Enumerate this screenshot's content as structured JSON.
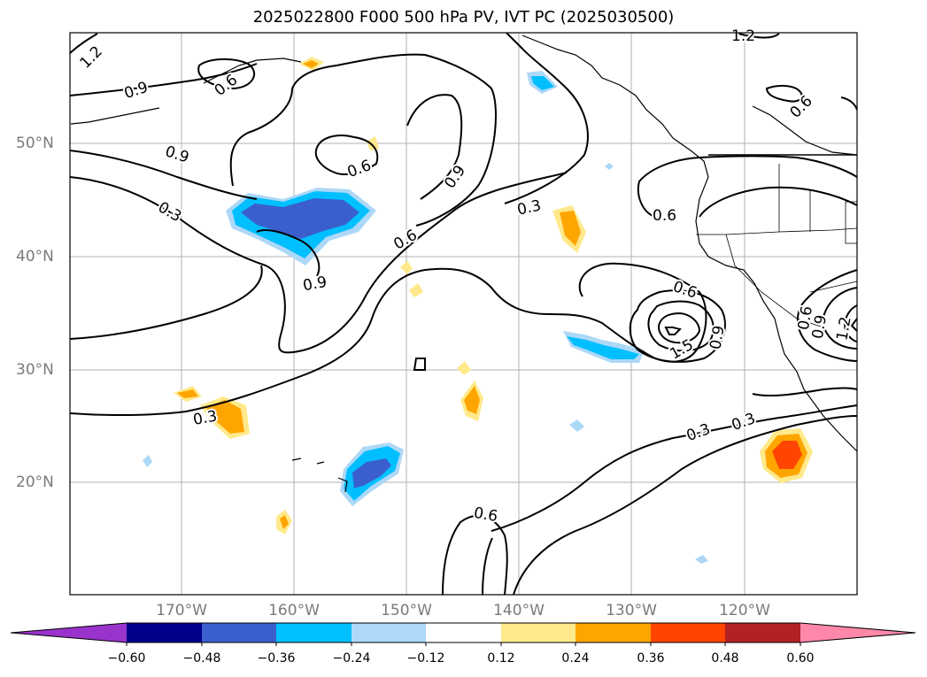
{
  "title": "2025022800 F000 500 hPa PV, IVT PC (2025030500)",
  "lat_labels": [
    "50°N",
    "40°N",
    "30°N",
    "20°N"
  ],
  "lon_labels": [
    "170°W",
    "160°W",
    "150°W",
    "140°W",
    "130°W",
    "120°W"
  ],
  "contour_labels": [
    "1.2",
    "0.9",
    "0.6",
    "0.9",
    "0.6",
    "0.9",
    "0.3",
    "0.9",
    "0.6",
    "0.3",
    "0.6",
    "0.6",
    "0.6",
    "0.9",
    "1.5",
    "0.6",
    "0.9",
    "1.2",
    "0.3",
    "0.3",
    "0.3",
    "0.6"
  ],
  "colorbar": {
    "labels": [
      "−0.60",
      "−0.48",
      "−0.36",
      "−0.24",
      "−0.12",
      "0.12",
      "0.24",
      "0.36",
      "0.48",
      "0.60"
    ],
    "colors": [
      "#9933cc",
      "#00008b",
      "#3a5fcd",
      "#00bfff",
      "#add8f7",
      "#ffffff",
      "#ffe98a",
      "#ffa500",
      "#ff4500",
      "#b22222",
      "#ff88aa"
    ]
  },
  "colors": {
    "contour": "#000000",
    "grid": "#b0b0b0",
    "axis_label": "#7a7a7a"
  }
}
